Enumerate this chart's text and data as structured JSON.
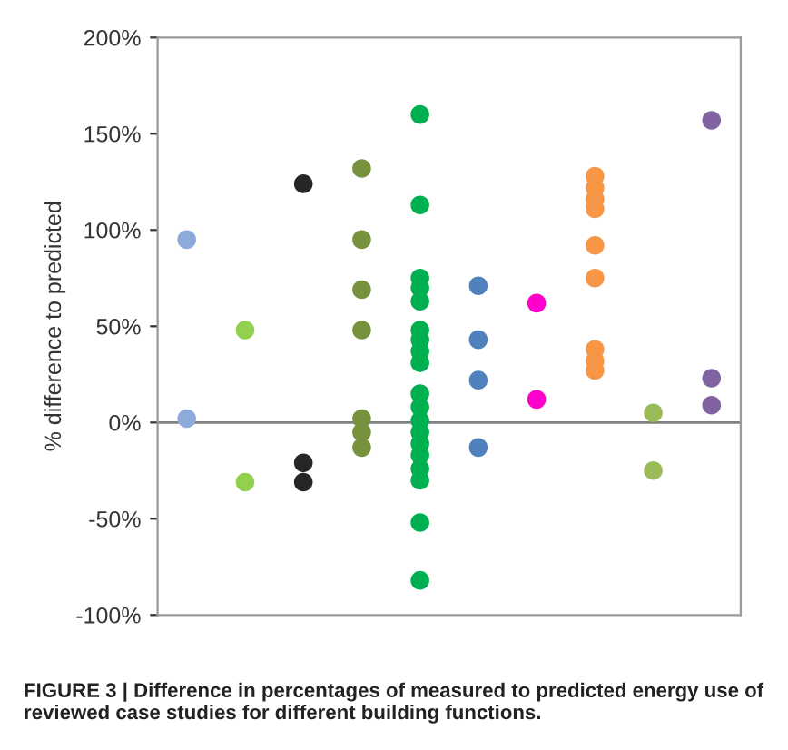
{
  "chart_data": {
    "type": "scatter",
    "ylabel": "% difference to predicted",
    "annotations": [
      "FIGURE 3 | Difference in percentages of measured to predicted energy use of reviewed case studies for different building functions."
    ],
    "categories": [
      null,
      null,
      null,
      null,
      null,
      null,
      null,
      null,
      null,
      null
    ],
    "ylim": [
      -100,
      200
    ],
    "yticks": [
      {
        "value": -100,
        "label": "-100%"
      },
      {
        "value": -50,
        "label": "-50%"
      },
      {
        "value": 0,
        "label": "0%"
      },
      {
        "value": 50,
        "label": "50%"
      },
      {
        "value": 100,
        "label": "100%"
      },
      {
        "value": 150,
        "label": "150%"
      },
      {
        "value": 200,
        "label": "200%"
      }
    ],
    "tick_labels": "y",
    "grid": false,
    "legend": false,
    "marker": "circle",
    "ref_lines": [
      {
        "axis": "y",
        "value": 0,
        "color": "#808080"
      }
    ],
    "series": [
      {
        "values": [
          95,
          48,
          124,
          132,
          160,
          71,
          62,
          128,
          5,
          157
        ],
        "colors": [
          "#8eaadb",
          "#92d050",
          "#262626",
          "#76923c",
          "#00b050",
          "#4f81bd",
          "#ff00cc",
          "#f79646",
          "#9bbb59",
          "#8064a2"
        ]
      },
      {
        "values": [
          2,
          -31,
          -21,
          95,
          113,
          43,
          12,
          122,
          -25,
          23
        ],
        "colors": [
          "#8eaadb",
          "#92d050",
          "#262626",
          "#76923c",
          "#00b050",
          "#4f81bd",
          "#ff00cc",
          "#f79646",
          "#9bbb59",
          "#8064a2"
        ]
      },
      {
        "values": [
          null,
          null,
          -31,
          69,
          75,
          22,
          null,
          116,
          null,
          9
        ],
        "colors": [
          null,
          null,
          "#262626",
          "#76923c",
          "#00b050",
          "#4f81bd",
          null,
          "#f79646",
          null,
          "#8064a2"
        ]
      },
      {
        "values": [
          null,
          null,
          null,
          48,
          70,
          -13,
          null,
          111,
          null,
          null
        ],
        "colors": [
          null,
          null,
          null,
          "#76923c",
          "#00b050",
          "#4f81bd",
          null,
          "#f79646",
          null,
          null
        ]
      },
      {
        "values": [
          null,
          null,
          null,
          2,
          63,
          null,
          null,
          92,
          null,
          null
        ],
        "colors": [
          null,
          null,
          null,
          "#76923c",
          "#00b050",
          null,
          null,
          "#f79646",
          null,
          null
        ]
      },
      {
        "values": [
          null,
          null,
          null,
          -5,
          48,
          null,
          null,
          75,
          null,
          null
        ],
        "colors": [
          null,
          null,
          null,
          "#76923c",
          "#00b050",
          null,
          null,
          "#f79646",
          null,
          null
        ]
      },
      {
        "values": [
          null,
          null,
          null,
          -13,
          43,
          null,
          null,
          38,
          null,
          null
        ],
        "colors": [
          null,
          null,
          null,
          "#76923c",
          "#00b050",
          null,
          null,
          "#f79646",
          null,
          null
        ]
      },
      {
        "values": [
          null,
          null,
          null,
          null,
          37,
          null,
          null,
          32,
          null,
          null
        ],
        "colors": [
          null,
          null,
          null,
          null,
          "#00b050",
          null,
          null,
          "#f79646",
          null,
          null
        ]
      },
      {
        "values": [
          null,
          null,
          null,
          null,
          31,
          null,
          null,
          27,
          null,
          null
        ],
        "colors": [
          null,
          null,
          null,
          null,
          "#00b050",
          null,
          null,
          "#f79646",
          null,
          null
        ]
      },
      {
        "color": "#00b050",
        "values": [
          null,
          null,
          null,
          null,
          15,
          null,
          null,
          null,
          null,
          null
        ]
      },
      {
        "color": "#00b050",
        "values": [
          null,
          null,
          null,
          null,
          8,
          null,
          null,
          null,
          null,
          null
        ]
      },
      {
        "color": "#00b050",
        "values": [
          null,
          null,
          null,
          null,
          1,
          null,
          null,
          null,
          null,
          null
        ]
      },
      {
        "color": "#00b050",
        "values": [
          null,
          null,
          null,
          null,
          -5,
          null,
          null,
          null,
          null,
          null
        ]
      },
      {
        "color": "#00b050",
        "values": [
          null,
          null,
          null,
          null,
          -11,
          null,
          null,
          null,
          null,
          null
        ]
      },
      {
        "color": "#00b050",
        "values": [
          null,
          null,
          null,
          null,
          -17,
          null,
          null,
          null,
          null,
          null
        ]
      },
      {
        "color": "#00b050",
        "values": [
          null,
          null,
          null,
          null,
          -24,
          null,
          null,
          null,
          null,
          null
        ]
      },
      {
        "color": "#00b050",
        "values": [
          null,
          null,
          null,
          null,
          -30,
          null,
          null,
          null,
          null,
          null
        ]
      },
      {
        "color": "#00b050",
        "values": [
          null,
          null,
          null,
          null,
          -52,
          null,
          null,
          null,
          null,
          null
        ]
      },
      {
        "color": "#00b050",
        "values": [
          null,
          null,
          null,
          null,
          -82,
          null,
          null,
          null,
          null,
          null
        ]
      }
    ]
  }
}
